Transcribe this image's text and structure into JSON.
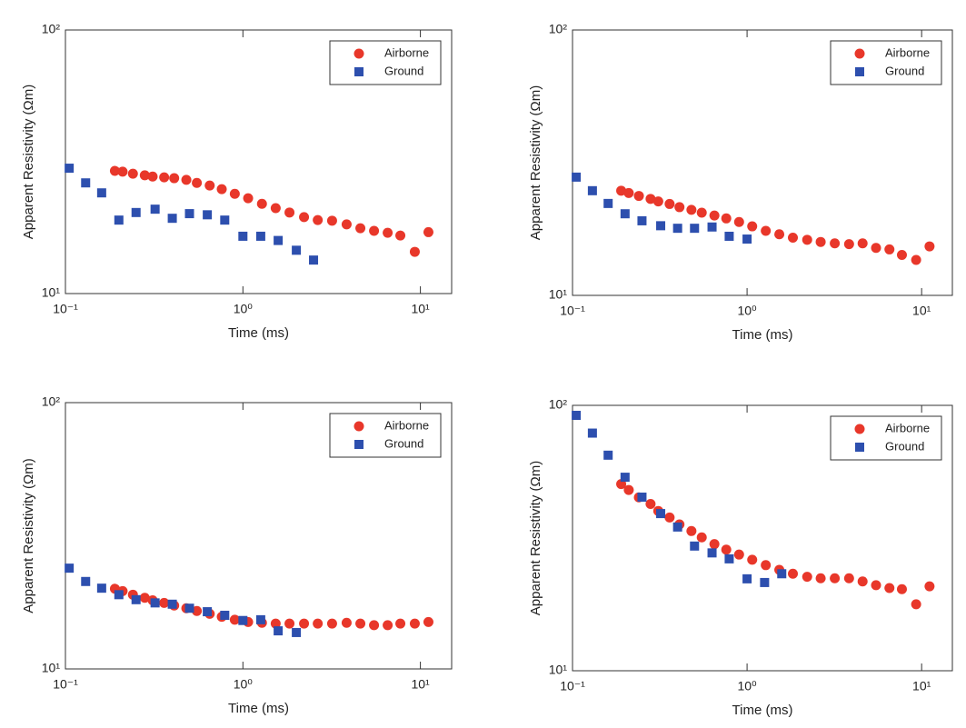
{
  "chart_data": [
    {
      "type": "scatter",
      "x_label": "Time (ms)",
      "y_label": "Apparent Resistivity (Ωm)",
      "xscale": "log",
      "yscale": "log",
      "xlim": [
        0.1,
        15
      ],
      "ylim": [
        10,
        100
      ],
      "xticks": [
        {
          "value": 0.1,
          "label": "10⁻¹"
        },
        {
          "value": 1,
          "label": "10⁰"
        },
        {
          "value": 10,
          "label": "10¹"
        }
      ],
      "yticks": [
        {
          "value": 10,
          "label": "10¹"
        },
        {
          "value": 100,
          "label": "10²"
        }
      ],
      "legend": "upper right",
      "series": [
        {
          "name": "Airborne",
          "color": "#e8372a",
          "marker": "circle",
          "x": [
            0.19,
            0.21,
            0.24,
            0.28,
            0.31,
            0.36,
            0.41,
            0.48,
            0.55,
            0.65,
            0.76,
            0.9,
            1.07,
            1.28,
            1.53,
            1.83,
            2.21,
            2.64,
            3.18,
            3.84,
            4.59,
            5.48,
            6.54,
            7.71,
            9.3,
            11.1
          ],
          "values": [
            29.2,
            29.0,
            28.5,
            28.1,
            27.8,
            27.6,
            27.4,
            27.0,
            26.3,
            25.7,
            24.9,
            23.9,
            23.0,
            21.9,
            21.1,
            20.3,
            19.5,
            19.0,
            18.9,
            18.3,
            17.7,
            17.3,
            17.0,
            16.6,
            14.4,
            17.1
          ]
        },
        {
          "name": "Ground",
          "color": "#2d4fae",
          "marker": "square",
          "x": [
            0.105,
            0.13,
            0.16,
            0.2,
            0.25,
            0.32,
            0.4,
            0.5,
            0.63,
            0.79,
            1.0,
            1.26,
            1.58,
            2.0,
            2.5
          ],
          "values": [
            29.9,
            26.3,
            24.1,
            19.0,
            20.3,
            20.9,
            19.3,
            20.1,
            19.9,
            19.0,
            16.5,
            16.5,
            15.9,
            14.6,
            13.4
          ]
        }
      ]
    },
    {
      "type": "scatter",
      "x_label": "Time (ms)",
      "y_label": "Apparent Resistivity (Ωm)",
      "xscale": "log",
      "yscale": "log",
      "xlim": [
        0.1,
        15
      ],
      "ylim": [
        10,
        100
      ],
      "xticks": [
        {
          "value": 0.1,
          "label": "10⁻¹"
        },
        {
          "value": 1,
          "label": "10⁰"
        },
        {
          "value": 10,
          "label": "10¹"
        }
      ],
      "yticks": [
        {
          "value": 10,
          "label": "10¹"
        },
        {
          "value": 100,
          "label": "10²"
        }
      ],
      "legend": "upper right",
      "series": [
        {
          "name": "Airborne",
          "color": "#e8372a",
          "marker": "circle",
          "x": [
            0.19,
            0.21,
            0.24,
            0.28,
            0.31,
            0.36,
            0.41,
            0.48,
            0.55,
            0.65,
            0.76,
            0.9,
            1.07,
            1.28,
            1.53,
            1.83,
            2.21,
            2.64,
            3.18,
            3.84,
            4.59,
            5.48,
            6.54,
            7.71,
            9.3,
            11.1
          ],
          "values": [
            24.8,
            24.3,
            23.7,
            23.1,
            22.6,
            22.1,
            21.5,
            21.0,
            20.5,
            20.0,
            19.5,
            18.9,
            18.2,
            17.5,
            17.0,
            16.5,
            16.2,
            15.9,
            15.7,
            15.6,
            15.7,
            15.1,
            14.9,
            14.2,
            13.6,
            15.3
          ]
        },
        {
          "name": "Ground",
          "color": "#2d4fae",
          "marker": "square",
          "x": [
            0.105,
            0.13,
            0.16,
            0.2,
            0.25,
            0.32,
            0.4,
            0.5,
            0.63,
            0.79,
            1.0
          ],
          "values": [
            27.9,
            24.8,
            22.2,
            20.3,
            19.1,
            18.3,
            17.9,
            17.9,
            18.1,
            16.7,
            16.3
          ]
        }
      ]
    },
    {
      "type": "scatter",
      "x_label": "Time (ms)",
      "y_label": "Apparent Resistivity (Ωm)",
      "xscale": "log",
      "yscale": "log",
      "xlim": [
        0.1,
        15
      ],
      "ylim": [
        10,
        100
      ],
      "xticks": [
        {
          "value": 0.1,
          "label": "10⁻¹"
        },
        {
          "value": 1,
          "label": "10⁰"
        },
        {
          "value": 10,
          "label": "10¹"
        }
      ],
      "yticks": [
        {
          "value": 10,
          "label": "10¹"
        },
        {
          "value": 100,
          "label": "10²"
        }
      ],
      "legend": "upper right",
      "series": [
        {
          "name": "Airborne",
          "color": "#e8372a",
          "marker": "circle",
          "x": [
            0.19,
            0.21,
            0.24,
            0.28,
            0.31,
            0.36,
            0.41,
            0.48,
            0.55,
            0.65,
            0.76,
            0.9,
            1.07,
            1.28,
            1.53,
            1.83,
            2.21,
            2.64,
            3.18,
            3.84,
            4.59,
            5.48,
            6.54,
            7.71,
            9.3,
            11.1
          ],
          "values": [
            20.0,
            19.6,
            19.0,
            18.5,
            18.1,
            17.7,
            17.3,
            16.9,
            16.5,
            16.1,
            15.7,
            15.3,
            15.0,
            14.9,
            14.8,
            14.8,
            14.8,
            14.8,
            14.8,
            14.9,
            14.8,
            14.6,
            14.6,
            14.8,
            14.8,
            15.0
          ]
        },
        {
          "name": "Ground",
          "color": "#2d4fae",
          "marker": "square",
          "x": [
            0.105,
            0.13,
            0.16,
            0.2,
            0.25,
            0.32,
            0.4,
            0.5,
            0.63,
            0.79,
            1.0,
            1.26,
            1.58,
            2.0
          ],
          "values": [
            23.9,
            21.3,
            20.1,
            19.0,
            18.2,
            17.7,
            17.5,
            16.9,
            16.4,
            15.9,
            15.2,
            15.3,
            13.9,
            13.7
          ]
        }
      ]
    },
    {
      "type": "scatter",
      "x_label": "Time (ms)",
      "y_label": "Apparent Resistivity (Ωm)",
      "xscale": "log",
      "yscale": "log",
      "xlim": [
        0.1,
        15
      ],
      "ylim": [
        10,
        100
      ],
      "xticks": [
        {
          "value": 0.1,
          "label": "10⁻¹"
        },
        {
          "value": 1,
          "label": "10⁰"
        },
        {
          "value": 10,
          "label": "10¹"
        }
      ],
      "yticks": [
        {
          "value": 10,
          "label": "10¹"
        },
        {
          "value": 100,
          "label": "10²"
        }
      ],
      "legend": "upper right",
      "series": [
        {
          "name": "Airborne",
          "color": "#e8372a",
          "marker": "circle",
          "x": [
            0.19,
            0.21,
            0.24,
            0.28,
            0.31,
            0.36,
            0.41,
            0.48,
            0.55,
            0.65,
            0.76,
            0.9,
            1.07,
            1.28,
            1.53,
            1.83,
            2.21,
            2.64,
            3.18,
            3.84,
            4.59,
            5.48,
            6.54,
            7.71,
            9.3,
            11.1
          ],
          "values": [
            50.5,
            48.0,
            45.0,
            42.5,
            40.0,
            37.8,
            35.6,
            33.6,
            31.8,
            30.0,
            28.6,
            27.4,
            26.2,
            25.0,
            24.0,
            23.2,
            22.6,
            22.3,
            22.3,
            22.3,
            21.7,
            21.0,
            20.5,
            20.3,
            17.8,
            20.8
          ]
        },
        {
          "name": "Ground",
          "color": "#2d4fae",
          "marker": "square",
          "x": [
            0.105,
            0.13,
            0.16,
            0.2,
            0.25,
            0.32,
            0.4,
            0.5,
            0.63,
            0.79,
            1.0,
            1.26,
            1.58
          ],
          "values": [
            91.7,
            78.6,
            64.9,
            53.6,
            45.1,
            39.1,
            34.8,
            29.5,
            27.8,
            26.4,
            22.2,
            21.5,
            23.2
          ]
        }
      ]
    }
  ]
}
